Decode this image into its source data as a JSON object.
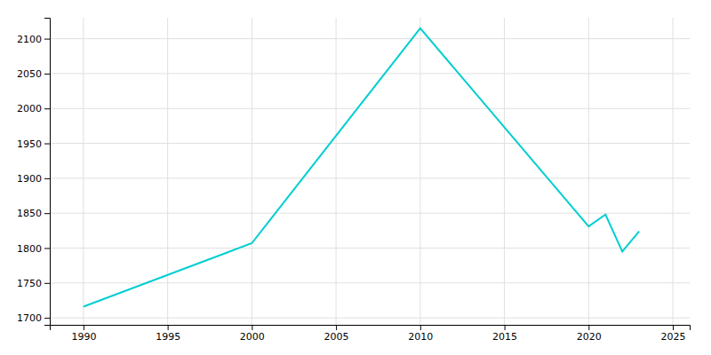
{
  "chart_data": {
    "type": "line",
    "x": [
      1990,
      2000,
      2010,
      2020,
      2021,
      2022,
      2023
    ],
    "values": [
      1716,
      1807,
      2115,
      1831,
      1848,
      1795,
      1824
    ],
    "color": "#00CED1",
    "xlim": [
      1988,
      2026
    ],
    "ylim": [
      1690,
      2130
    ],
    "xticks": [
      1990,
      1995,
      2000,
      2005,
      2010,
      2015,
      2020,
      2025
    ],
    "yticks": [
      1700,
      1750,
      1800,
      1850,
      1900,
      1950,
      2000,
      2050,
      2100
    ],
    "grid": true
  }
}
